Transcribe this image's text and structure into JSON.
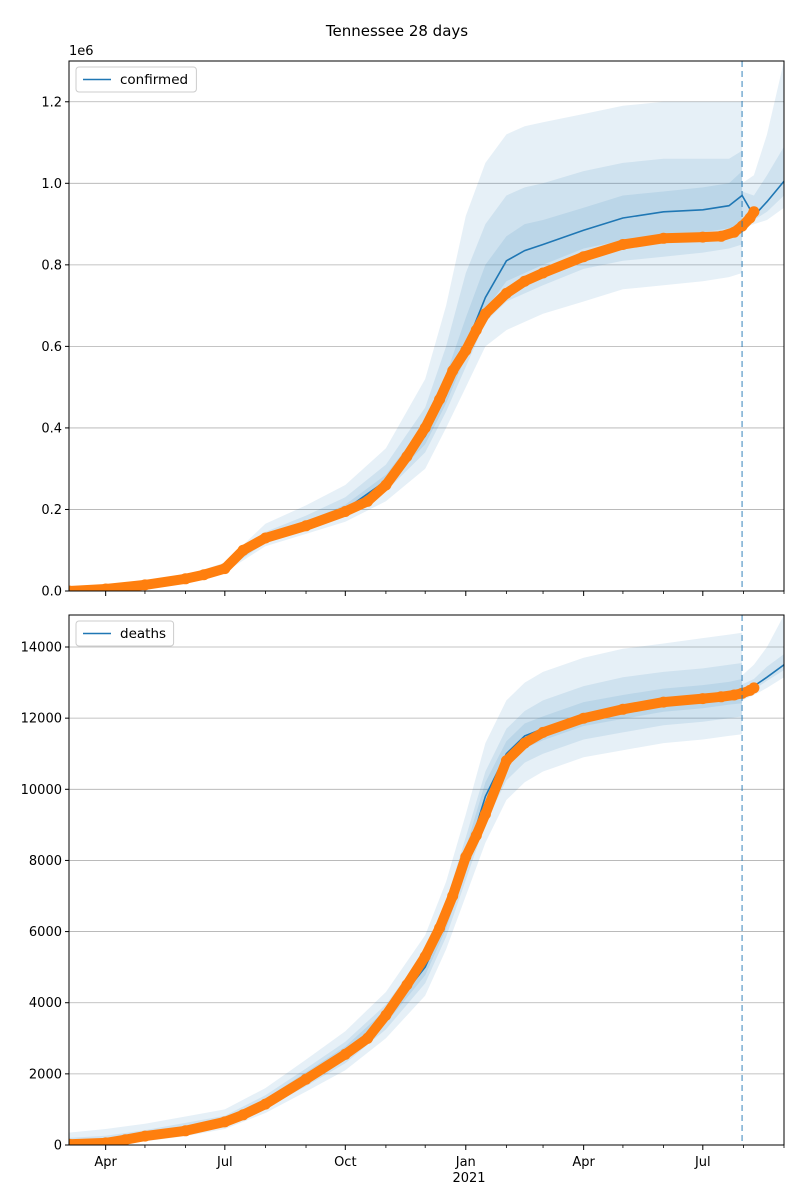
{
  "figure": {
    "title": "Tennessee 28 days"
  },
  "colors": {
    "model": "#1f77b4",
    "observed": "#ff7f0e",
    "band": "#1f77b4",
    "grid": "#b0b0b0",
    "forecast_line": "#1f77b4"
  },
  "x_axis": {
    "ticks": [
      {
        "t": 10,
        "label": "Apr"
      },
      {
        "t": 101,
        "label": "Jul"
      },
      {
        "t": 193,
        "label": "Oct"
      },
      {
        "t": 285,
        "label": "Jan"
      },
      {
        "t": 375,
        "label": "Apr"
      },
      {
        "t": 466,
        "label": "Jul"
      }
    ],
    "minor_ticks": [
      40,
      71,
      132,
      163,
      224,
      254,
      316,
      344,
      405,
      436,
      497,
      528
    ],
    "year_label": "2021",
    "xlim": [
      -18,
      528
    ],
    "forecast_start": 496
  },
  "chart_data": [
    {
      "type": "line",
      "name": "confirmed",
      "legend": "confirmed",
      "legend_loc": "upper left",
      "grid": "y",
      "offset_label": "1e6",
      "ylim": [
        0,
        1.3
      ],
      "y_ticks": [
        0.0,
        0.2,
        0.4,
        0.6,
        0.8,
        1.0,
        1.2
      ],
      "y_tick_labels": [
        "0.0",
        "0.2",
        "0.4",
        "0.6",
        "0.8",
        "1.0",
        "1.2"
      ],
      "model": {
        "x": [
          -18,
          10,
          40,
          71,
          101,
          132,
          163,
          193,
          224,
          254,
          270,
          285,
          300,
          316,
          330,
          344,
          375,
          405,
          436,
          466,
          486,
          496,
          505,
          515,
          528
        ],
        "y": [
          0.0,
          0.005,
          0.015,
          0.03,
          0.055,
          0.125,
          0.16,
          0.2,
          0.27,
          0.38,
          0.48,
          0.6,
          0.72,
          0.81,
          0.835,
          0.85,
          0.885,
          0.915,
          0.93,
          0.935,
          0.945,
          0.97,
          0.92,
          0.955,
          1.005
        ]
      },
      "bands": [
        {
          "x": [
            -18,
            10,
            40,
            71,
            101,
            132,
            163,
            193,
            224,
            254,
            270,
            285,
            300,
            316,
            330,
            344,
            375,
            405,
            436,
            466,
            486,
            496
          ],
          "lower": [
            0.0,
            0.004,
            0.012,
            0.025,
            0.046,
            0.11,
            0.14,
            0.17,
            0.22,
            0.3,
            0.4,
            0.5,
            0.6,
            0.64,
            0.66,
            0.68,
            0.71,
            0.74,
            0.75,
            0.76,
            0.77,
            0.78
          ],
          "upper": [
            0.0,
            0.006,
            0.02,
            0.038,
            0.07,
            0.165,
            0.21,
            0.26,
            0.35,
            0.52,
            0.7,
            0.92,
            1.05,
            1.12,
            1.14,
            1.15,
            1.17,
            1.19,
            1.2,
            1.2,
            1.2,
            1.2
          ]
        },
        {
          "x": [
            -18,
            10,
            40,
            71,
            101,
            132,
            163,
            193,
            224,
            254,
            270,
            285,
            300,
            316,
            330,
            344,
            375,
            405,
            436,
            466,
            486,
            496
          ],
          "lower": [
            0.0,
            0.0045,
            0.013,
            0.027,
            0.05,
            0.118,
            0.15,
            0.185,
            0.245,
            0.34,
            0.44,
            0.55,
            0.66,
            0.71,
            0.73,
            0.75,
            0.79,
            0.81,
            0.82,
            0.83,
            0.84,
            0.85
          ],
          "upper": [
            0.0,
            0.0055,
            0.018,
            0.034,
            0.063,
            0.145,
            0.185,
            0.23,
            0.31,
            0.45,
            0.6,
            0.78,
            0.9,
            0.97,
            0.99,
            1.0,
            1.03,
            1.05,
            1.06,
            1.06,
            1.06,
            1.08
          ]
        },
        {
          "x": [
            -18,
            10,
            40,
            71,
            101,
            132,
            163,
            193,
            224,
            254,
            270,
            285,
            300,
            316,
            330,
            344,
            375,
            405,
            436,
            466,
            486,
            496
          ],
          "lower": [
            0.0,
            0.0047,
            0.014,
            0.028,
            0.052,
            0.121,
            0.155,
            0.192,
            0.258,
            0.36,
            0.46,
            0.575,
            0.69,
            0.76,
            0.78,
            0.8,
            0.84,
            0.86,
            0.87,
            0.88,
            0.89,
            0.9
          ],
          "upper": [
            0.0,
            0.0052,
            0.016,
            0.032,
            0.059,
            0.134,
            0.17,
            0.212,
            0.285,
            0.41,
            0.53,
            0.67,
            0.8,
            0.87,
            0.9,
            0.91,
            0.94,
            0.97,
            0.98,
            0.99,
            1.0,
            1.03
          ]
        },
        {
          "x": [
            496,
            505,
            515,
            528
          ],
          "lower": [
            0.89,
            0.9,
            0.91,
            0.94
          ],
          "upper": [
            1.0,
            1.02,
            1.12,
            1.3
          ]
        },
        {
          "x": [
            496,
            505,
            515,
            528
          ],
          "lower": [
            0.91,
            0.91,
            0.93,
            0.97
          ],
          "upper": [
            0.98,
            0.97,
            1.02,
            1.09
          ]
        }
      ],
      "observed": {
        "x": [
          -18,
          10,
          40,
          71,
          85,
          101,
          115,
          132,
          163,
          193,
          210,
          224,
          240,
          254,
          265,
          275,
          285,
          293,
          300,
          316,
          330,
          344,
          375,
          405,
          436,
          466,
          480,
          490,
          496,
          502,
          505
        ],
        "y": [
          0.0,
          0.005,
          0.015,
          0.03,
          0.04,
          0.055,
          0.1,
          0.13,
          0.16,
          0.195,
          0.22,
          0.26,
          0.33,
          0.4,
          0.47,
          0.54,
          0.59,
          0.64,
          0.68,
          0.73,
          0.76,
          0.78,
          0.82,
          0.85,
          0.865,
          0.868,
          0.87,
          0.88,
          0.895,
          0.915,
          0.93
        ]
      }
    },
    {
      "type": "line",
      "name": "deaths",
      "legend": "deaths",
      "legend_loc": "upper left",
      "grid": "y",
      "offset_label": "",
      "ylim": [
        0,
        14900
      ],
      "y_ticks": [
        0,
        2000,
        4000,
        6000,
        8000,
        10000,
        12000,
        14000
      ],
      "y_tick_labels": [
        "0",
        "2000",
        "4000",
        "6000",
        "8000",
        "10000",
        "12000",
        "14000"
      ],
      "model": {
        "x": [
          -18,
          10,
          40,
          71,
          101,
          132,
          163,
          193,
          224,
          254,
          270,
          285,
          300,
          316,
          330,
          344,
          375,
          405,
          436,
          466,
          486,
          496,
          505,
          515,
          528
        ],
        "y": [
          20,
          60,
          250,
          450,
          650,
          1200,
          1900,
          2600,
          3600,
          5000,
          6300,
          8000,
          9800,
          11000,
          11500,
          11700,
          12100,
          12300,
          12500,
          12600,
          12680,
          12750,
          12900,
          13150,
          13500
        ]
      },
      "bands": [
        {
          "x": [
            -18,
            10,
            40,
            71,
            101,
            132,
            163,
            193,
            224,
            254,
            270,
            285,
            300,
            316,
            330,
            344,
            375,
            405,
            436,
            466,
            486,
            496
          ],
          "lower": [
            0,
            0,
            100,
            250,
            450,
            900,
            1500,
            2100,
            3000,
            4200,
            5500,
            7000,
            8500,
            9700,
            10200,
            10500,
            10900,
            11100,
            11300,
            11400,
            11500,
            11550
          ],
          "upper": [
            350,
            450,
            600,
            800,
            1000,
            1600,
            2400,
            3200,
            4300,
            5900,
            7400,
            9300,
            11300,
            12500,
            13000,
            13300,
            13700,
            13950,
            14100,
            14250,
            14350,
            14400
          ]
        },
        {
          "x": [
            -18,
            10,
            40,
            71,
            101,
            132,
            163,
            193,
            224,
            254,
            270,
            285,
            300,
            316,
            330,
            344,
            375,
            405,
            436,
            466,
            486,
            496
          ],
          "lower": [
            0,
            20,
            160,
            330,
            530,
            1030,
            1650,
            2300,
            3250,
            4550,
            5850,
            7450,
            9050,
            10250,
            10750,
            11000,
            11400,
            11600,
            11800,
            11900,
            12000,
            12050
          ],
          "upper": [
            200,
            260,
            420,
            620,
            820,
            1400,
            2150,
            2900,
            3950,
            5450,
            6850,
            8650,
            10500,
            11700,
            12200,
            12500,
            12900,
            13150,
            13300,
            13400,
            13500,
            13550
          ]
        },
        {
          "x": [
            -18,
            10,
            40,
            71,
            101,
            132,
            163,
            193,
            224,
            254,
            270,
            285,
            300,
            316,
            330,
            344,
            375,
            405,
            436,
            466,
            486,
            496
          ],
          "lower": [
            0,
            35,
            200,
            390,
            590,
            1110,
            1770,
            2450,
            3420,
            4770,
            6070,
            7720,
            9400,
            10650,
            11150,
            11380,
            11780,
            11980,
            12180,
            12280,
            12380,
            12420
          ],
          "upper": [
            90,
            110,
            320,
            530,
            730,
            1300,
            2050,
            2770,
            3800,
            5250,
            6600,
            8350,
            10200,
            11350,
            11850,
            12050,
            12450,
            12650,
            12830,
            12930,
            13020,
            13100
          ]
        },
        {
          "x": [
            496,
            505,
            515,
            528
          ],
          "lower": [
            12500,
            12650,
            12850,
            13150
          ],
          "upper": [
            13200,
            13500,
            14000,
            14900
          ]
        },
        {
          "x": [
            496,
            505,
            515,
            528
          ],
          "lower": [
            12650,
            12800,
            13050,
            13350
          ],
          "upper": [
            12950,
            13100,
            13450,
            13800
          ]
        }
      ],
      "observed": {
        "x": [
          -18,
          10,
          25,
          40,
          71,
          101,
          115,
          132,
          163,
          193,
          210,
          224,
          240,
          254,
          265,
          275,
          285,
          293,
          300,
          316,
          330,
          344,
          375,
          405,
          436,
          466,
          480,
          490,
          496,
          502,
          505
        ],
        "y": [
          20,
          60,
          150,
          250,
          400,
          650,
          850,
          1150,
          1850,
          2550,
          3000,
          3650,
          4500,
          5300,
          6100,
          7000,
          8100,
          8700,
          9300,
          10800,
          11300,
          11600,
          12000,
          12250,
          12450,
          12550,
          12600,
          12650,
          12700,
          12780,
          12850
        ]
      }
    }
  ]
}
